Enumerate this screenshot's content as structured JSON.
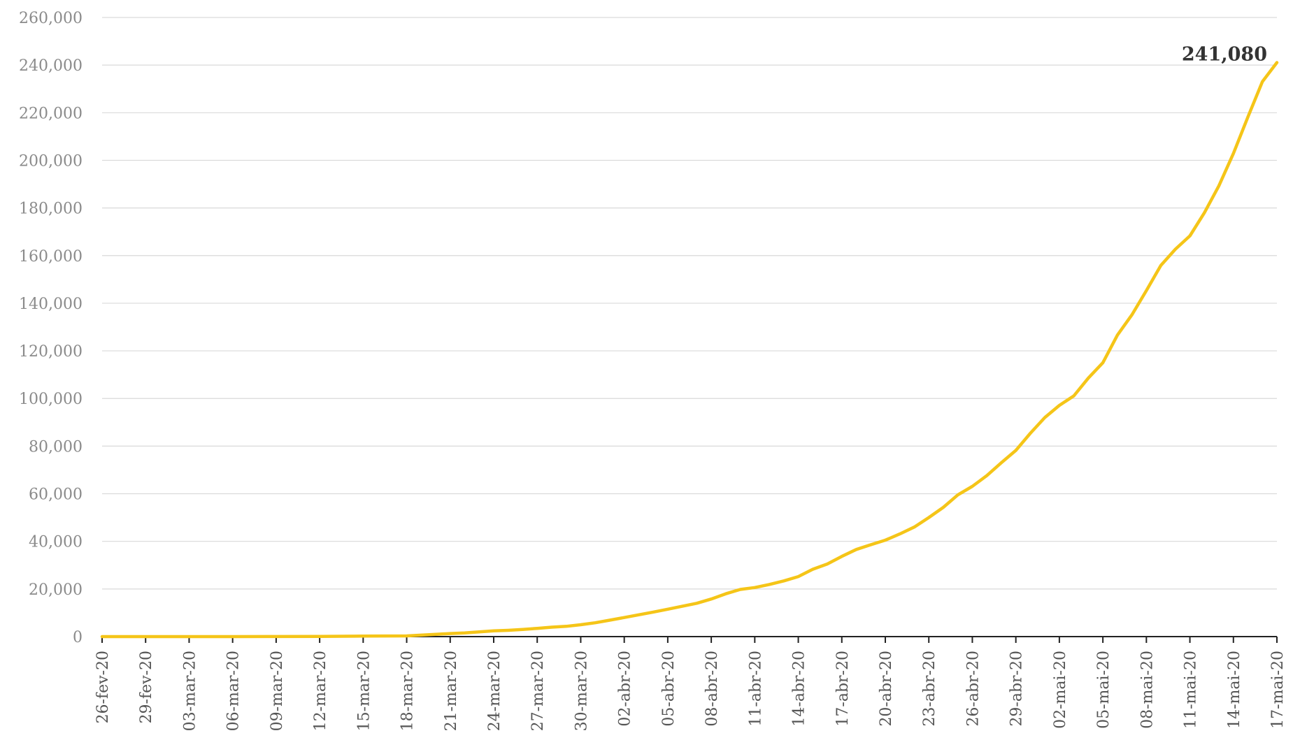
{
  "chart_data": {
    "type": "line",
    "title": "",
    "xlabel": "",
    "ylabel": "",
    "ylim": [
      0,
      260000
    ],
    "grid": true,
    "yticks": [
      0,
      20000,
      40000,
      60000,
      80000,
      100000,
      120000,
      140000,
      160000,
      180000,
      200000,
      220000,
      240000,
      260000
    ],
    "ytick_labels": [
      "0",
      "20,000",
      "40,000",
      "60,000",
      "80,000",
      "100,000",
      "120,000",
      "140,000",
      "160,000",
      "180,000",
      "200,000",
      "220,000",
      "240,000",
      "260,000"
    ],
    "xtick_labels": [
      "26-fev-20",
      "29-fev-20",
      "03-mar-20",
      "06-mar-20",
      "09-mar-20",
      "12-mar-20",
      "15-mar-20",
      "18-mar-20",
      "21-mar-20",
      "24-mar-20",
      "27-mar-20",
      "30-mar-20",
      "02-abr-20",
      "05-abr-20",
      "08-abr-20",
      "11-abr-20",
      "14-abr-20",
      "17-abr-20",
      "20-abr-20",
      "23-abr-20",
      "26-abr-20",
      "29-abr-20",
      "02-mai-20",
      "05-mai-20",
      "08-mai-20",
      "11-mai-20",
      "14-mai-20",
      "17-mai-20"
    ],
    "series": [
      {
        "color": "#f5c518",
        "x": [
          "26-fev-20",
          "29-fev-20",
          "03-mar-20",
          "06-mar-20",
          "09-mar-20",
          "12-mar-20",
          "15-mar-20",
          "18-mar-20",
          "19-mar-20",
          "20-mar-20",
          "21-mar-20",
          "22-mar-20",
          "24-mar-20",
          "25-mar-20",
          "26-mar-20",
          "27-mar-20",
          "28-mar-20",
          "29-mar-20",
          "30-mar-20",
          "31-mar-20",
          "01-abr-20",
          "02-abr-20",
          "03-abr-20",
          "04-abr-20",
          "05-abr-20",
          "06-abr-20",
          "07-abr-20",
          "08-abr-20",
          "09-abr-20",
          "10-abr-20",
          "11-abr-20",
          "12-abr-20",
          "13-abr-20",
          "14-abr-20",
          "15-abr-20",
          "16-abr-20",
          "17-abr-20",
          "18-abr-20",
          "19-abr-20",
          "20-abr-20",
          "21-abr-20",
          "22-abr-20",
          "23-abr-20",
          "24-abr-20",
          "25-abr-20",
          "26-abr-20",
          "27-abr-20",
          "28-abr-20",
          "29-abr-20",
          "30-abr-20",
          "01-mai-20",
          "02-mai-20",
          "03-mai-20",
          "04-mai-20",
          "05-mai-20",
          "06-mai-20",
          "07-mai-20",
          "08-mai-20",
          "09-mai-20",
          "10-mai-20",
          "11-mai-20",
          "12-mai-20",
          "13-mai-20",
          "14-mai-20",
          "15-mai-20",
          "16-mai-20",
          "17-mai-20"
        ],
        "values": [
          1,
          2,
          3,
          13,
          25,
          77,
          200,
          290,
          620,
          950,
          1300,
          1550,
          2400,
          2650,
          3000,
          3450,
          3950,
          4300,
          5000,
          5800,
          6900,
          8000,
          9150,
          10300,
          11500,
          12750,
          14000,
          15800,
          18000,
          19800,
          20600,
          21900,
          23400,
          25200,
          28300,
          30500,
          33700,
          36600,
          38600,
          40500,
          43100,
          46000,
          50000,
          54300,
          59500,
          63100,
          67600,
          73000,
          78200,
          85400,
          92000,
          97100,
          101100,
          108600,
          115000,
          126600,
          135100,
          145300,
          155900,
          162700,
          168300,
          178000,
          189300,
          202900,
          218200,
          233100,
          241080
        ]
      }
    ],
    "annotation": {
      "text": "241,080",
      "x": "17-mai-20",
      "y": 241080
    }
  }
}
